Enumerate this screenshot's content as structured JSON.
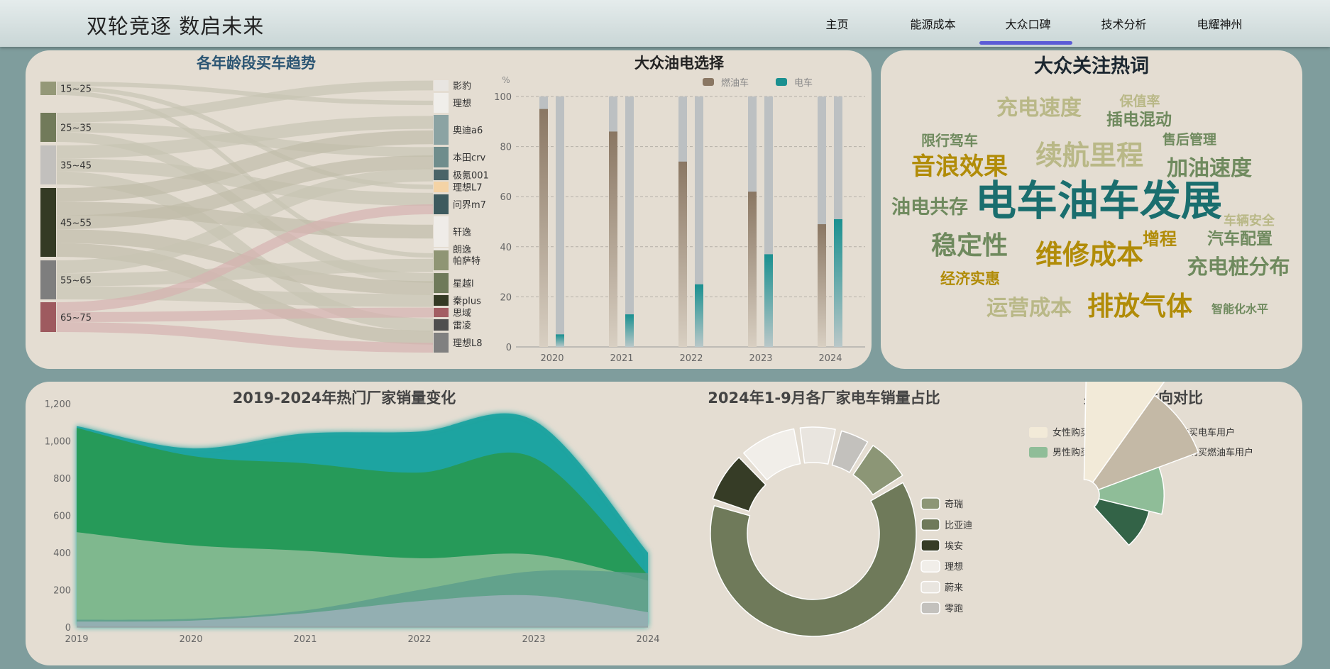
{
  "nav": {
    "brand": "双轮竞逐 数启未来",
    "items": [
      "主页",
      "能源成本",
      "大众口碑",
      "技术分析",
      "电耀神州"
    ],
    "active_index": 2
  },
  "sankey": {
    "title": "各年龄段买车趋势",
    "age_groups": [
      "15~25",
      "25~35",
      "35~45",
      "45~55",
      "55~65",
      "65~75"
    ],
    "cars": [
      "影豹",
      "理想",
      "奥迪a6",
      "本田crv",
      "极氪001",
      "理想L7",
      "问界m7",
      "轩逸",
      "朗逸",
      "帕萨特",
      "星越l",
      "秦plus",
      "思域",
      "雷凌",
      "理想L8"
    ]
  },
  "wordcloud": {
    "title": "大众关注热词",
    "words": [
      "电车油车发展",
      "续航里程",
      "排放气体",
      "维修成本",
      "音浪效果",
      "稳定性",
      "充电速度",
      "加油速度",
      "充电桩分布",
      "运营成本",
      "油电共存",
      "插电混动",
      "汽车配置",
      "增程",
      "经济实惠",
      "限行驾车",
      "售后管理",
      "车辆安全",
      "保值率",
      "智能化水平"
    ]
  },
  "chart_data": [
    {
      "type": "sankey",
      "title": "各年龄段买车趋势",
      "sources": [
        "15~25",
        "25~35",
        "35~45",
        "45~55",
        "55~65",
        "65~75"
      ],
      "targets": [
        "影豹",
        "理想",
        "奥迪a6",
        "本田crv",
        "极氪001",
        "理想L7",
        "问界m7",
        "轩逸",
        "朗逸",
        "帕萨特",
        "星越l",
        "秦plus",
        "思域",
        "雷凌",
        "理想L8"
      ]
    },
    {
      "type": "bar",
      "title": "大众油电选择",
      "ylabel": "%",
      "ylim": [
        0,
        100
      ],
      "yticks": [
        0,
        20,
        40,
        60,
        80,
        100
      ],
      "categories": [
        "2020",
        "2021",
        "2022",
        "2023",
        "2024"
      ],
      "series": [
        {
          "name": "燃油车",
          "values": [
            95,
            86,
            74,
            62,
            49
          ],
          "color": "#8a7763"
        },
        {
          "name": "电车",
          "values": [
            5,
            13,
            25,
            37,
            51
          ],
          "color": "#1a9090"
        }
      ],
      "background_bar": 100,
      "legend": "top-right",
      "grid": true
    },
    {
      "type": "area",
      "title": "2019-2024年热门厂家销量变化",
      "x": [
        "2019",
        "2020",
        "2021",
        "2022",
        "2023",
        "2024"
      ],
      "ylim": [
        0,
        1200
      ],
      "yticks": [
        "0",
        "200",
        "400",
        "600",
        "800",
        "1,000",
        "1,200"
      ],
      "series": [
        {
          "values": [
            1080,
            960,
            1040,
            1050,
            1110,
            400
          ],
          "color": "#1fa3a0"
        },
        {
          "values": [
            1070,
            920,
            880,
            830,
            910,
            280
          ],
          "color": "#279a55"
        },
        {
          "values": [
            510,
            440,
            410,
            370,
            390,
            250
          ],
          "color": "#8fbd98"
        },
        {
          "values": [
            40,
            45,
            90,
            200,
            300,
            290
          ],
          "color": "#5d9d8c"
        },
        {
          "values": [
            30,
            35,
            75,
            140,
            170,
            80
          ],
          "color": "#9cb2b8"
        }
      ],
      "grid": false
    },
    {
      "type": "pie",
      "title": "2024年1-9月各厂家电车销量占比",
      "labels": [
        "奇瑞",
        "比亚迪",
        "埃安",
        "理想",
        "蔚来",
        "零跑"
      ],
      "values": [
        7,
        61,
        8,
        9,
        6,
        5
      ],
      "colors": [
        "#8c9676",
        "#6f7a5a",
        "#363c26",
        "#f1eee9",
        "#e9e5df",
        "#c3c1bd"
      ],
      "legend": "right"
    },
    {
      "type": "pie",
      "title": "男女购车意向对比",
      "labels": [
        "女性购买电车用户",
        "男性购买电车用户",
        "男性购买燃油车用户",
        "女性购买燃油车用户"
      ],
      "values": [
        43,
        33,
        20,
        16
      ],
      "colors": [
        "#f2ead8",
        "#c4b9a6",
        "#8fbd98",
        "#336347"
      ],
      "legend": "top"
    }
  ]
}
